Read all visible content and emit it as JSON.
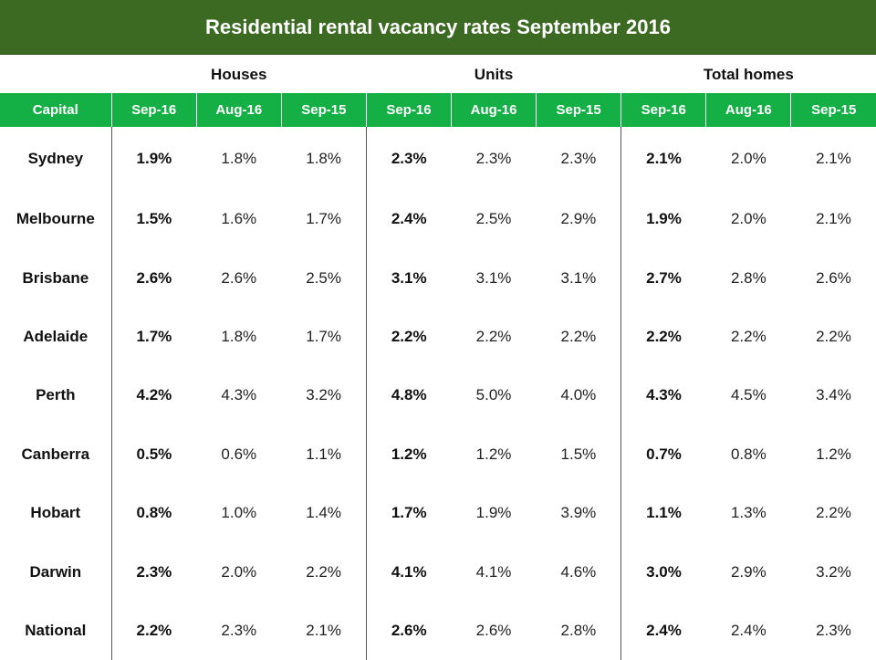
{
  "title": "Residential rental vacancy rates September 2016",
  "groups": {
    "houses": "Houses",
    "units": "Units",
    "total": "Total homes"
  },
  "columns": [
    "Capital",
    "Sep-16",
    "Aug-16",
    "Sep-15",
    "Sep-16",
    "Aug-16",
    "Sep-15",
    "Sep-16",
    "Aug-16",
    "Sep-15"
  ],
  "rows": [
    [
      "Sydney",
      "1.9%",
      "1.8%",
      "1.8%",
      "2.3%",
      "2.3%",
      "2.3%",
      "2.1%",
      "2.0%",
      "2.1%"
    ],
    [
      "Melbourne",
      "1.5%",
      "1.6%",
      "1.7%",
      "2.4%",
      "2.5%",
      "2.9%",
      "1.9%",
      "2.0%",
      "2.1%"
    ],
    [
      "Brisbane",
      "2.6%",
      "2.6%",
      "2.5%",
      "3.1%",
      "3.1%",
      "3.1%",
      "2.7%",
      "2.8%",
      "2.6%"
    ],
    [
      "Adelaide",
      "1.7%",
      "1.8%",
      "1.7%",
      "2.2%",
      "2.2%",
      "2.2%",
      "2.2%",
      "2.2%",
      "2.2%"
    ],
    [
      "Perth",
      "4.2%",
      "4.3%",
      "3.2%",
      "4.8%",
      "5.0%",
      "4.0%",
      "4.3%",
      "4.5%",
      "3.4%"
    ],
    [
      "Canberra",
      "0.5%",
      "0.6%",
      "1.1%",
      "1.2%",
      "1.2%",
      "1.5%",
      "0.7%",
      "0.8%",
      "1.2%"
    ],
    [
      "Hobart",
      "0.8%",
      "1.0%",
      "1.4%",
      "1.7%",
      "1.9%",
      "3.9%",
      "1.1%",
      "1.3%",
      "2.2%"
    ],
    [
      "Darwin",
      "2.3%",
      "2.0%",
      "2.2%",
      "4.1%",
      "4.1%",
      "4.6%",
      "3.0%",
      "2.9%",
      "3.2%"
    ],
    [
      "National",
      "2.2%",
      "2.3%",
      "2.1%",
      "2.6%",
      "2.6%",
      "2.8%",
      "2.4%",
      "2.4%",
      "2.3%"
    ]
  ],
  "colors": {
    "title_bg": "#3c6a22",
    "header_bg": "#14b046",
    "header_text": "#ffffff"
  }
}
